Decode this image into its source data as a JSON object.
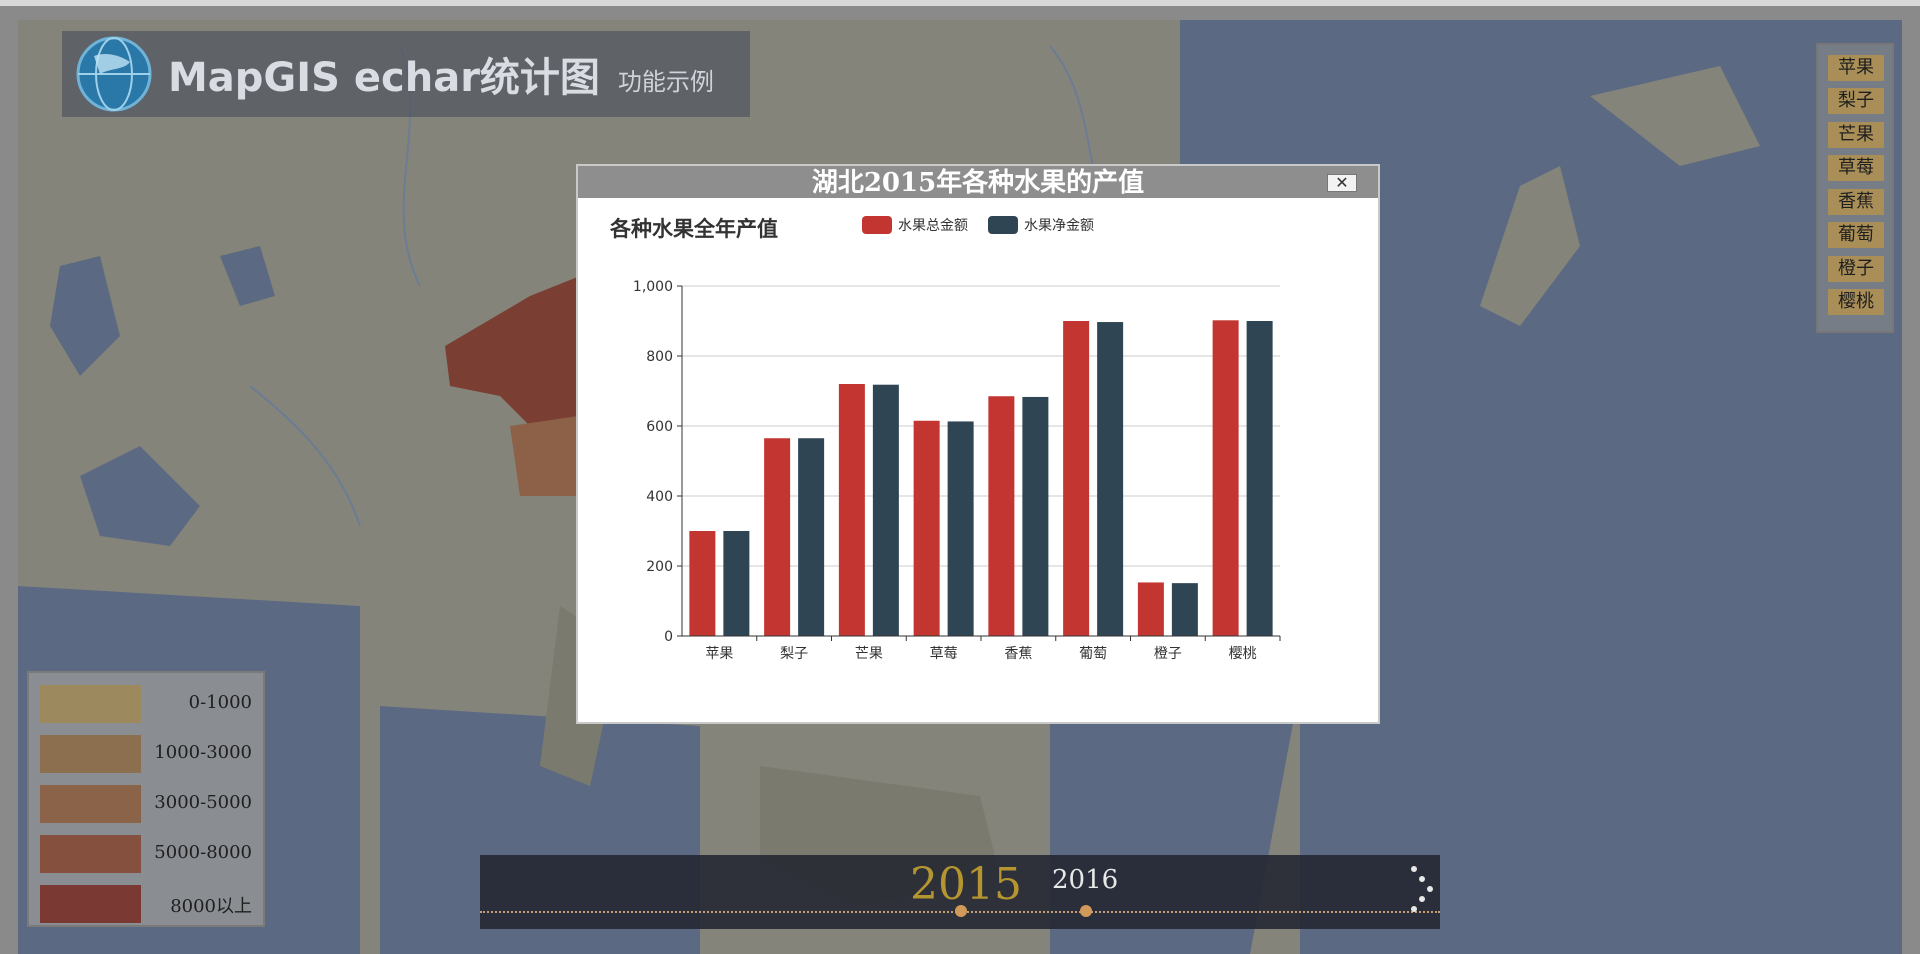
{
  "app": {
    "title": "MapGIS echar统计图",
    "subtitle": "功能示例"
  },
  "fruit_list": {
    "items": [
      "苹果",
      "梨子",
      "芒果",
      "草莓",
      "香蕉",
      "葡萄",
      "橙子",
      "樱桃"
    ]
  },
  "legend": {
    "items": [
      {
        "label": "0-1000",
        "color": "#9c8a5e"
      },
      {
        "label": "1000-3000",
        "color": "#8c6f4e"
      },
      {
        "label": "3000-5000",
        "color": "#8b6349"
      },
      {
        "label": "5000-8000",
        "color": "#86503f"
      },
      {
        "label": "8000以上",
        "color": "#7a3a33"
      }
    ]
  },
  "timeline": {
    "current_year": "2015",
    "next_year": "2016"
  },
  "modal": {
    "title": "湖北2015年各种水果的产值",
    "close_label": "✕"
  },
  "chart_data": {
    "type": "bar",
    "title": "各种水果全年产值",
    "categories": [
      "苹果",
      "梨子",
      "芒果",
      "草莓",
      "香蕉",
      "葡萄",
      "橙子",
      "樱桃"
    ],
    "series": [
      {
        "name": "水果总金额",
        "color": "#c23531",
        "values": [
          300,
          565,
          720,
          615,
          685,
          900,
          153,
          902
        ]
      },
      {
        "name": "水果净金额",
        "color": "#2f4554",
        "values": [
          300,
          565,
          718,
          613,
          683,
          897,
          151,
          900
        ]
      }
    ],
    "ylim": [
      0,
      1000
    ],
    "yticks": [
      "0",
      "200",
      "400",
      "600",
      "800",
      "1,000"
    ],
    "grid": true,
    "legend_position": "top"
  },
  "colors": {
    "map_water": "#5c6d86",
    "map_land": "#8b8878",
    "region_dark": "#7a3e33",
    "region_light": "#8d6048"
  }
}
